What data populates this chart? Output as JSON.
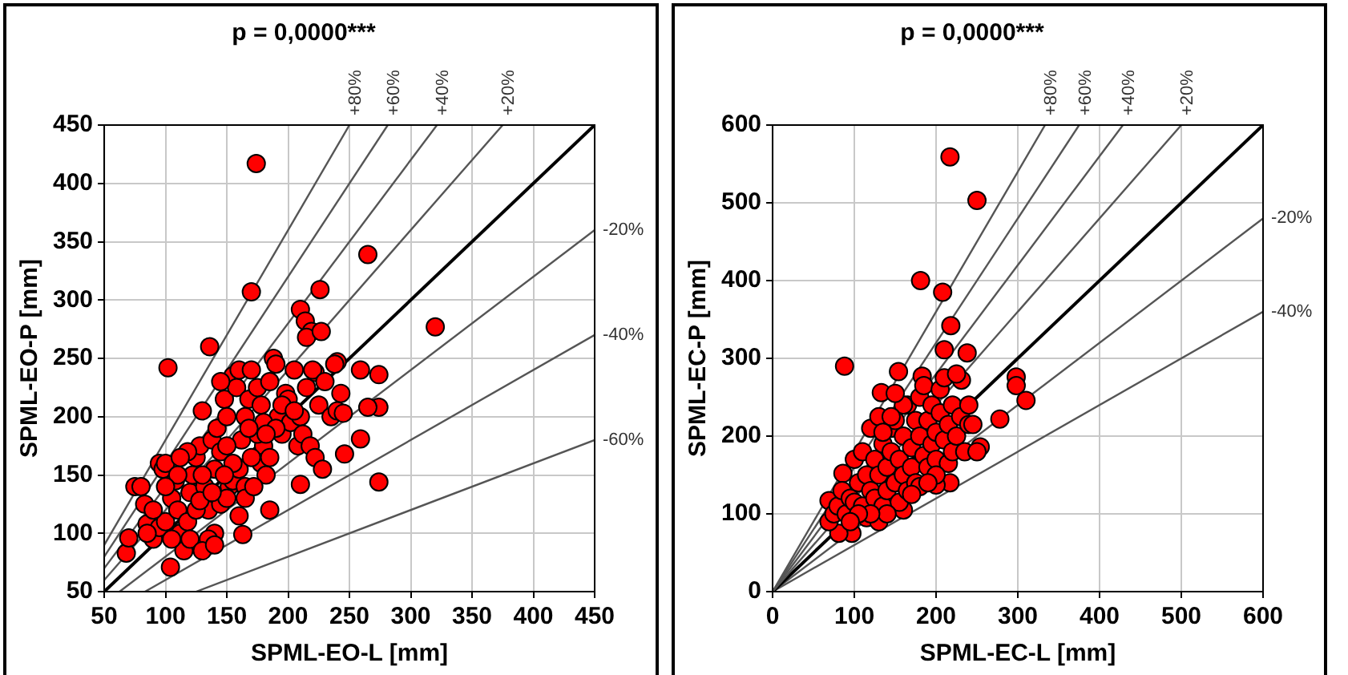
{
  "chart_data": [
    {
      "type": "scatter",
      "title": "p = 0,0000***",
      "xlabel": "SPML-EO-L [mm]",
      "ylabel": "SPML-EO-P [mm]",
      "xlim": [
        50,
        450
      ],
      "ylim": [
        50,
        450
      ],
      "xticks": [
        50,
        100,
        150,
        200,
        250,
        300,
        350,
        400,
        450
      ],
      "yticks": [
        50,
        100,
        150,
        200,
        250,
        300,
        350,
        400,
        450
      ],
      "grid": true,
      "legend": false,
      "series": [
        {
          "type": "scatter",
          "marker": "circle",
          "color": "#ff0000",
          "x": [
            174,
            265,
            170,
            226,
            320,
            136,
            102,
            210,
            214,
            219,
            215,
            227,
            274,
            259,
            274,
            265,
            259,
            274,
            246,
            210,
            185,
            163,
            104,
            68,
            70,
            240,
            243,
            222,
            75,
            80,
            83,
            85,
            90,
            95,
            98,
            100,
            95,
            100,
            105,
            108,
            110,
            112,
            115,
            118,
            120,
            122,
            125,
            128,
            130,
            132,
            135,
            138,
            140,
            142,
            145,
            148,
            150,
            152,
            155,
            158,
            160,
            162,
            165,
            168,
            170,
            175,
            178,
            180,
            182,
            185,
            188,
            190,
            192,
            195,
            198,
            200,
            202,
            205,
            208,
            210,
            212,
            215,
            218,
            220,
            222,
            225,
            228,
            230,
            235,
            238,
            240,
            245,
            140,
            145,
            150,
            155,
            160,
            165,
            170,
            175,
            180,
            130,
            125,
            120,
            110,
            105,
            100,
            90,
            85,
            135,
            130,
            140,
            160,
            165,
            150,
            145,
            155,
            185,
            190,
            118,
            112,
            128,
            138,
            148,
            168,
            178,
            195,
            205,
            172,
            182
          ],
          "values": [
            417,
            339,
            307,
            309,
            277,
            260,
            242,
            292,
            282,
            273,
            268,
            273,
            236,
            240,
            208,
            208,
            181,
            144,
            168,
            142,
            120,
            99,
            71,
            83,
            96,
            247,
            220,
            238,
            140,
            140,
            125,
            108,
            95,
            160,
            155,
            160,
            105,
            110,
            130,
            145,
            120,
            100,
            85,
            110,
            135,
            150,
            165,
            175,
            205,
            140,
            120,
            180,
            155,
            190,
            170,
            215,
            200,
            140,
            235,
            225,
            240,
            180,
            200,
            215,
            240,
            225,
            160,
            175,
            150,
            230,
            250,
            245,
            200,
            185,
            220,
            215,
            195,
            240,
            175,
            200,
            185,
            225,
            175,
            240,
            165,
            210,
            155,
            230,
            200,
            245,
            205,
            203,
            100,
            125,
            130,
            145,
            155,
            140,
            165,
            185,
            195,
            150,
            120,
            95,
            150,
            95,
            140,
            120,
            100,
            95,
            85,
            90,
            115,
            130,
            175,
            230,
            160,
            165,
            190,
            170,
            165,
            128,
            135,
            150,
            190,
            210,
            210,
            205,
            140,
            185
          ]
        },
        {
          "type": "line",
          "name": "+80%",
          "color": "#555555",
          "x": [
            50,
            250
          ],
          "values": [
            90,
            450
          ]
        },
        {
          "type": "line",
          "name": "+60%",
          "color": "#555555",
          "x": [
            50,
            281.25
          ],
          "values": [
            80,
            450
          ]
        },
        {
          "type": "line",
          "name": "+40%",
          "color": "#555555",
          "x": [
            50,
            321.4
          ],
          "values": [
            70,
            450
          ]
        },
        {
          "type": "line",
          "name": "+20%",
          "color": "#555555",
          "x": [
            50,
            375
          ],
          "values": [
            60,
            450
          ]
        },
        {
          "type": "line",
          "color": "#000000",
          "x": [
            50,
            450
          ],
          "values": [
            50,
            450
          ]
        },
        {
          "type": "line",
          "name": "-20%",
          "color": "#555555",
          "x": [
            62.5,
            450
          ],
          "values": [
            50,
            360
          ]
        },
        {
          "type": "line",
          "name": "-40%",
          "color": "#555555",
          "x": [
            83.3,
            450
          ],
          "values": [
            50,
            270
          ]
        },
        {
          "type": "line",
          "name": "-60%",
          "color": "#555555",
          "x": [
            125,
            450
          ],
          "values": [
            50,
            180
          ]
        }
      ]
    },
    {
      "type": "scatter",
      "title": "p = 0,0000***",
      "xlabel": "SPML-EC-L [mm]",
      "ylabel": "SPML-EC-P [mm]",
      "xlim": [
        0,
        600
      ],
      "ylim": [
        0,
        600
      ],
      "xticks": [
        0,
        100,
        200,
        300,
        400,
        500,
        600
      ],
      "yticks": [
        0,
        100,
        200,
        300,
        400,
        500,
        600
      ],
      "grid": true,
      "legend": false,
      "series": [
        {
          "type": "scatter",
          "marker": "circle",
          "color": "#ff0000",
          "x": [
            217,
            250,
            181,
            208,
            218,
            210,
            238,
            88,
            154,
            298,
            298,
            310,
            278,
            254,
            217,
            200,
            160,
            97,
            81,
            69,
            69,
            86,
            133,
            231,
            183,
            75,
            80,
            85,
            90,
            95,
            100,
            100,
            105,
            110,
            110,
            115,
            115,
            120,
            120,
            125,
            125,
            130,
            130,
            135,
            135,
            140,
            140,
            145,
            145,
            150,
            150,
            155,
            155,
            160,
            160,
            165,
            165,
            170,
            170,
            175,
            175,
            180,
            180,
            180,
            185,
            185,
            190,
            190,
            195,
            195,
            200,
            200,
            205,
            205,
            210,
            210,
            215,
            215,
            220,
            220,
            225,
            225,
            230,
            235,
            240,
            240,
            245,
            250,
            200,
            170,
            130,
            140,
            120,
            190,
            160,
            150,
            145,
            135,
            105,
            95
          ],
          "values": [
            559,
            503,
            400,
            385,
            342,
            311,
            307,
            290,
            283,
            276,
            265,
            246,
            222,
            186,
            140,
            137,
            105,
            75,
            75,
            90,
            117,
            152,
            256,
            272,
            277,
            100,
            110,
            130,
            100,
            120,
            115,
            170,
            140,
            110,
            180,
            150,
            95,
            130,
            210,
            170,
            120,
            150,
            225,
            190,
            110,
            160,
            130,
            210,
            180,
            140,
            220,
            170,
            115,
            200,
            150,
            240,
            130,
            185,
            160,
            220,
            140,
            250,
            200,
            135,
            175,
            265,
            220,
            160,
            240,
            190,
            205,
            170,
            260,
            230,
            275,
            195,
            215,
            165,
            240,
            180,
            280,
            200,
            225,
            180,
            240,
            215,
            215,
            180,
            150,
            125,
            90,
            100,
            100,
            140,
            240,
            255,
            225,
            205,
            100,
            90
          ]
        },
        {
          "type": "line",
          "name": "+80%",
          "color": "#555555",
          "x": [
            0,
            333.3
          ],
          "values": [
            0,
            600
          ]
        },
        {
          "type": "line",
          "name": "+60%",
          "color": "#555555",
          "x": [
            0,
            375
          ],
          "values": [
            0,
            600
          ]
        },
        {
          "type": "line",
          "name": "+40%",
          "color": "#555555",
          "x": [
            0,
            428.6
          ],
          "values": [
            0,
            600
          ]
        },
        {
          "type": "line",
          "name": "+20%",
          "color": "#555555",
          "x": [
            0,
            500
          ],
          "values": [
            0,
            600
          ]
        },
        {
          "type": "line",
          "color": "#000000",
          "x": [
            0,
            600
          ],
          "values": [
            0,
            600
          ]
        },
        {
          "type": "line",
          "name": "-20%",
          "color": "#555555",
          "x": [
            0,
            600
          ],
          "values": [
            0,
            480
          ]
        },
        {
          "type": "line",
          "name": "-40%",
          "color": "#555555",
          "x": [
            0,
            600
          ],
          "values": [
            0,
            360
          ]
        }
      ]
    }
  ]
}
